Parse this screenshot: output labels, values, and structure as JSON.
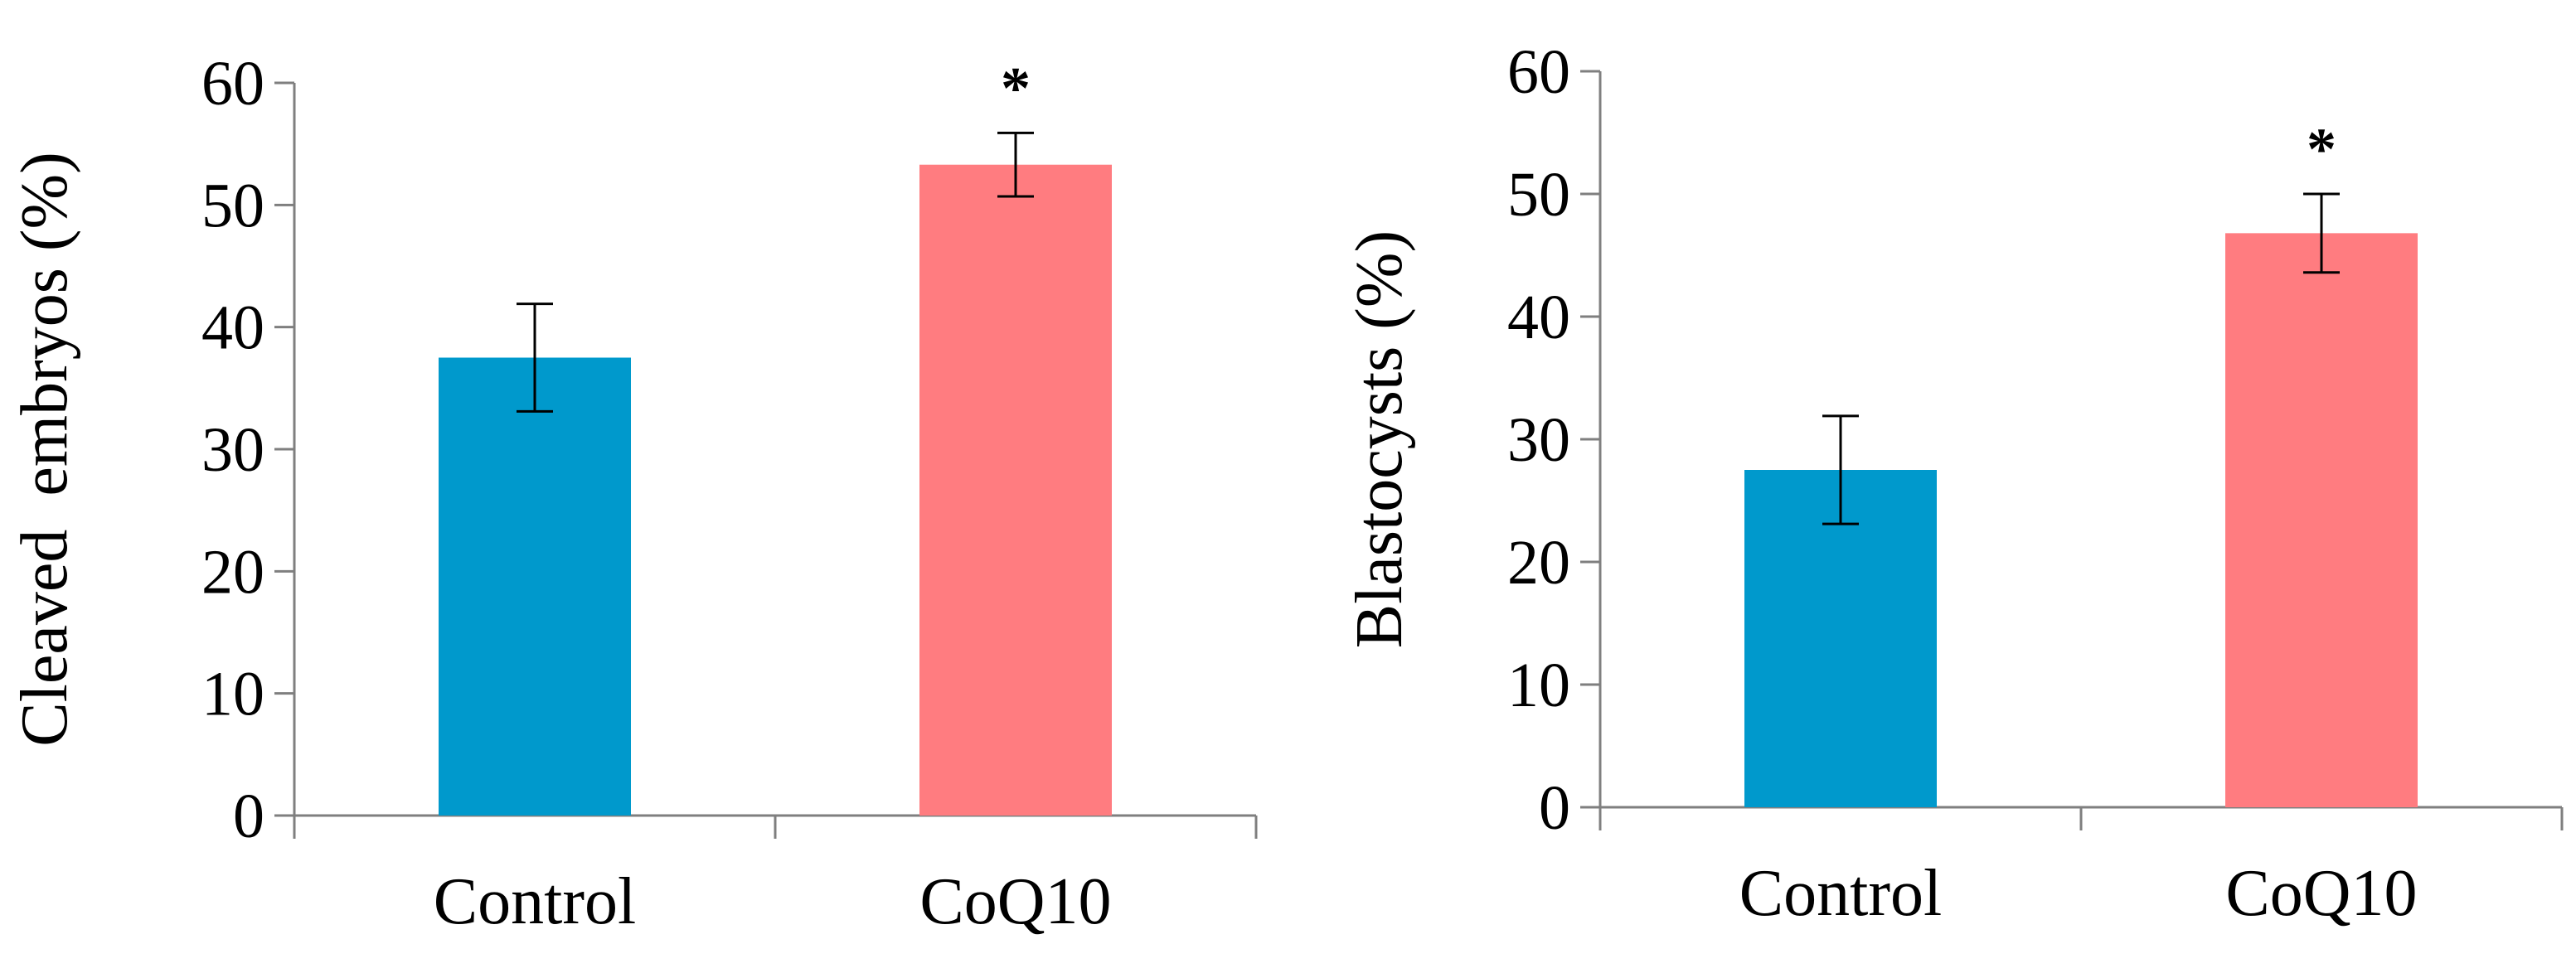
{
  "chart_data": [
    {
      "type": "bar",
      "title": "",
      "xlabel": "",
      "ylabel": "Cleaved  embryos (%)",
      "ylim": [
        0,
        60
      ],
      "yticks": [
        0,
        10,
        20,
        30,
        40,
        50,
        60
      ],
      "categories": [
        "Control",
        "CoQ10"
      ],
      "values": [
        37.5,
        53.3
      ],
      "error": [
        4.4,
        2.6
      ],
      "significance": [
        "",
        "*"
      ],
      "colors": [
        "#0099cc",
        "#ff7c80"
      ]
    },
    {
      "type": "bar",
      "title": "",
      "xlabel": "",
      "ylabel": "Blastocysts (%)",
      "ylim": [
        0,
        60
      ],
      "yticks": [
        0,
        10,
        20,
        30,
        40,
        50,
        60
      ],
      "categories": [
        "Control",
        "CoQ10"
      ],
      "values": [
        27.5,
        46.8
      ],
      "error": [
        4.4,
        3.2
      ],
      "significance": [
        "",
        "*"
      ],
      "colors": [
        "#0099cc",
        "#ff7c80"
      ]
    }
  ]
}
